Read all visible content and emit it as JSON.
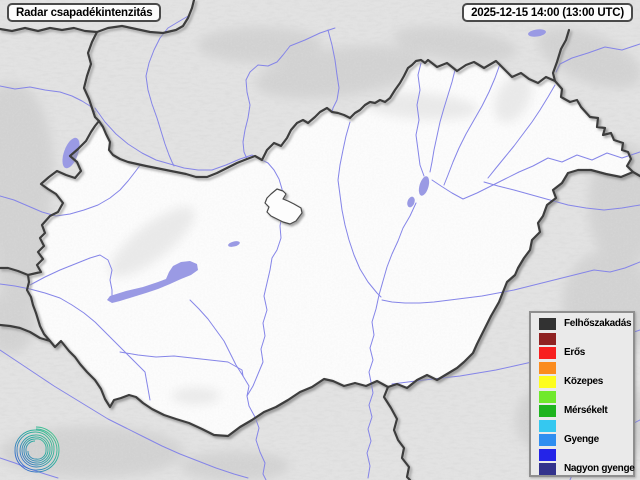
{
  "header": {
    "title": "Radar csapadékintenzitás",
    "timestamp": "2025-12-15 14:00 (13:00 UTC)"
  },
  "legend": {
    "items": [
      {
        "color": "#323232",
        "label": "Felhőszakadás"
      },
      {
        "color": "#8f2222",
        "label": ""
      },
      {
        "color": "#f81f1f",
        "label": "Erős"
      },
      {
        "color": "#fb8c1e",
        "label": ""
      },
      {
        "color": "#fdfd1d",
        "label": "Közepes"
      },
      {
        "color": "#70e92c",
        "label": ""
      },
      {
        "color": "#1eb41e",
        "label": "Mérsékelt"
      },
      {
        "color": "#35c8f0",
        "label": ""
      },
      {
        "color": "#2f8ef0",
        "label": "Gyenge"
      },
      {
        "color": "#2424e8",
        "label": ""
      },
      {
        "color": "#32328c",
        "label": "Nagyon gyenge"
      }
    ]
  },
  "map": {
    "colors": {
      "land_outside": "#e3e3e3",
      "land_hungary": "#fcfcfc",
      "border_line": "#3c3c3c",
      "river": "#8585e8",
      "lake": "#9a9ae4",
      "logo_teal": "#35b998",
      "logo_blue": "#3c5fd6"
    }
  }
}
